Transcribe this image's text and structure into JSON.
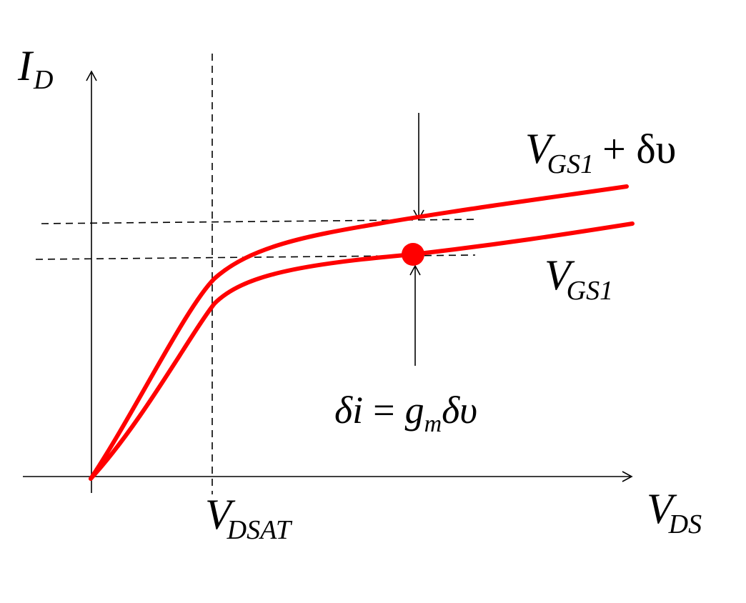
{
  "labels": {
    "y_axis": {
      "main": "I",
      "sub": "D"
    },
    "x_axis": {
      "main": "V",
      "sub": "DS"
    },
    "vdsat": {
      "main": "V",
      "sub": "DSAT"
    },
    "curve_upper": {
      "main": "V",
      "sub": "GS1",
      "suffix": "+ δυ"
    },
    "curve_lower": {
      "main": "V",
      "sub": "GS1"
    },
    "equation": {
      "lhs": "δi",
      "eq": "=",
      "g": "g",
      "m": "m",
      "dv": "δυ"
    }
  },
  "colors": {
    "curve": "#ff0000",
    "axis": "#000000",
    "operating_point": "#ff0000"
  }
}
